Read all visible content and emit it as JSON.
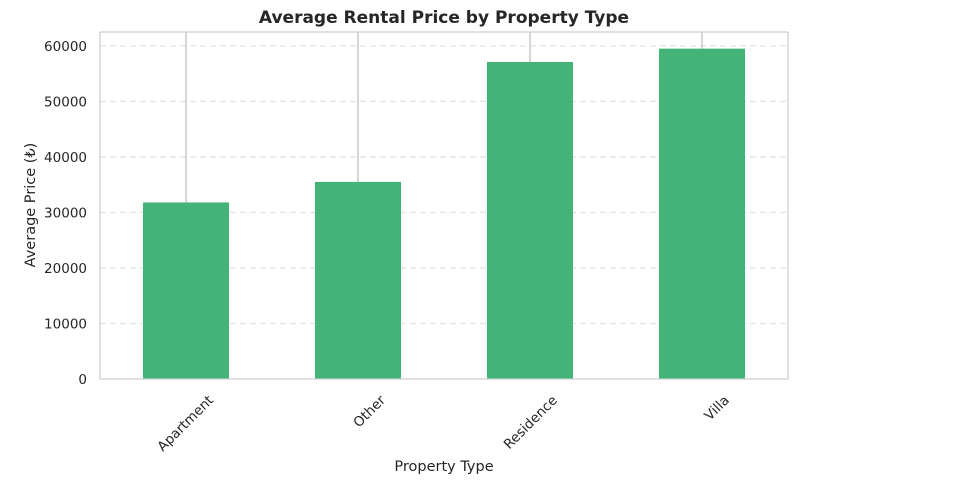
{
  "chart_data": {
    "type": "bar",
    "title": "Average Rental Price by Property Type",
    "xlabel": "Property Type",
    "ylabel": "Average Price (₺)",
    "categories": [
      "Apartment",
      "Other",
      "Residence",
      "Villa"
    ],
    "values": [
      31800,
      35500,
      57100,
      59500
    ],
    "error_upper": [
      62500,
      62500,
      62500,
      62500
    ],
    "ylim": [
      0,
      62500
    ],
    "yticks": [
      0,
      10000,
      20000,
      30000,
      40000,
      50000,
      60000
    ],
    "ytick_labels": [
      "0",
      "10000",
      "20000",
      "30000",
      "40000",
      "50000",
      "60000"
    ],
    "grid": "horizontal dashed",
    "legend": "none",
    "colors": {
      "bar": "#43b378",
      "grid": "#e3e3e3",
      "axes": "#cccccc",
      "errorbar": "#c8c8c8",
      "text": "#262626"
    }
  }
}
